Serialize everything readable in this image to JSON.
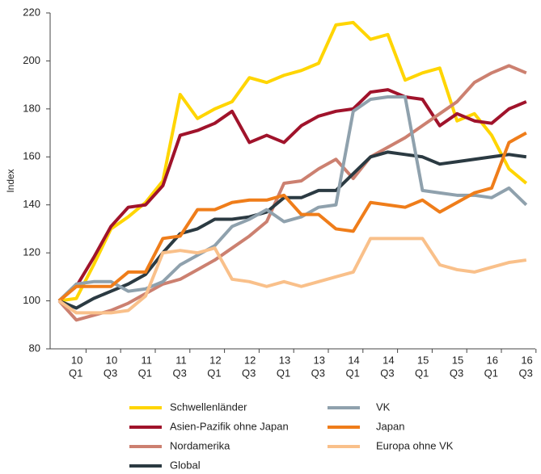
{
  "chart_data": {
    "type": "line",
    "y_label": "Index",
    "categories": [
      null,
      [
        "10",
        "Q1"
      ],
      null,
      [
        "10",
        "Q3"
      ],
      null,
      [
        "11",
        "Q1"
      ],
      null,
      [
        "11",
        "Q3"
      ],
      null,
      [
        "12",
        "Q1"
      ],
      null,
      [
        "12",
        "Q3"
      ],
      null,
      [
        "13",
        "Q1"
      ],
      null,
      [
        "13",
        "Q3"
      ],
      null,
      [
        "14",
        "Q1"
      ],
      null,
      [
        "14",
        "Q3"
      ],
      null,
      [
        "15",
        "Q1"
      ],
      null,
      [
        "15",
        "Q3"
      ],
      null,
      [
        "16",
        "Q1"
      ],
      null,
      [
        "16",
        "Q3"
      ]
    ],
    "ylim": [
      80,
      220
    ],
    "yticks": [
      80,
      100,
      120,
      140,
      160,
      180,
      200,
      220
    ],
    "series": [
      {
        "name": "Schwellenländer",
        "color": "#ffd500",
        "values": [
          100,
          101,
          115,
          130,
          135,
          141,
          150,
          186,
          176,
          180,
          183,
          193,
          191,
          194,
          196,
          199,
          215,
          216,
          209,
          211,
          192,
          195,
          197,
          175,
          178,
          169,
          155,
          149
        ]
      },
      {
        "name": "Asien-Pazifik ohne Japan",
        "color": "#a0132b",
        "values": [
          100,
          106,
          118,
          131,
          139,
          140,
          148,
          169,
          171,
          174,
          179,
          166,
          169,
          166,
          173,
          177,
          179,
          180,
          187,
          188,
          185,
          184,
          173,
          178,
          175,
          174,
          180,
          183
        ]
      },
      {
        "name": "Nordamerika",
        "color": "#cc8070",
        "values": [
          100,
          92,
          94,
          96,
          99,
          103,
          107,
          109,
          113,
          117,
          122,
          127,
          133,
          149,
          150,
          155,
          159,
          151,
          160,
          164,
          168,
          173,
          178,
          183,
          191,
          195,
          198,
          195
        ]
      },
      {
        "name": "Global",
        "color": "#2b3a42",
        "values": [
          100,
          97,
          101,
          104,
          107,
          111,
          120,
          128,
          130,
          134,
          134,
          135,
          137,
          143,
          143,
          146,
          146,
          153,
          160,
          162,
          161,
          160,
          157,
          158,
          159,
          160,
          161,
          160
        ]
      },
      {
        "name": "VK",
        "color": "#8fa1ad",
        "values": [
          100,
          107,
          108,
          108,
          104,
          105,
          108,
          115,
          119,
          123,
          131,
          134,
          138,
          133,
          135,
          139,
          140,
          179,
          184,
          185,
          185,
          146,
          145,
          144,
          144,
          143,
          147,
          140
        ]
      },
      {
        "name": "Japan",
        "color": "#ef7d1a",
        "values": [
          100,
          106,
          106,
          106,
          112,
          112,
          126,
          127,
          138,
          138,
          141,
          142,
          142,
          144,
          136,
          136,
          130,
          129,
          141,
          140,
          139,
          142,
          137,
          141,
          145,
          147,
          166,
          170
        ]
      },
      {
        "name": "Europa ohne VK",
        "color": "#f9c08a",
        "values": [
          100,
          95,
          95,
          95,
          96,
          102,
          120,
          121,
          120,
          122,
          109,
          108,
          106,
          108,
          106,
          108,
          110,
          112,
          126,
          126,
          126,
          126,
          115,
          113,
          112,
          114,
          116,
          117
        ]
      }
    ]
  }
}
